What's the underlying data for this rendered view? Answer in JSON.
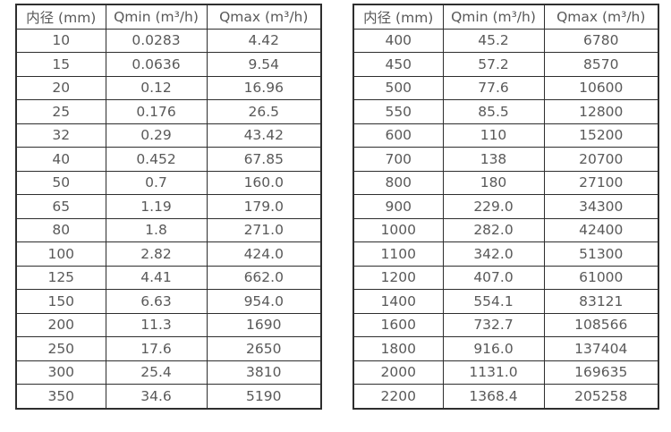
{
  "colors": {
    "background": "#ffffff",
    "border": "#2e2e2e",
    "text": "#595959"
  },
  "tables": [
    {
      "name": "flow-table-small-diameters",
      "headers": [
        "内径 (mm)",
        "Qmin (m³/h)",
        "Qmax (m³/h)"
      ],
      "rows": [
        [
          "10",
          "0.0283",
          "4.42"
        ],
        [
          "15",
          "0.0636",
          "9.54"
        ],
        [
          "20",
          "0.12",
          "16.96"
        ],
        [
          "25",
          "0.176",
          "26.5"
        ],
        [
          "32",
          "0.29",
          "43.42"
        ],
        [
          "40",
          "0.452",
          "67.85"
        ],
        [
          "50",
          "0.7",
          "160.0"
        ],
        [
          "65",
          "1.19",
          "179.0"
        ],
        [
          "80",
          "1.8",
          "271.0"
        ],
        [
          "100",
          "2.82",
          "424.0"
        ],
        [
          "125",
          "4.41",
          "662.0"
        ],
        [
          "150",
          "6.63",
          "954.0"
        ],
        [
          "200",
          "11.3",
          "1690"
        ],
        [
          "250",
          "17.6",
          "2650"
        ],
        [
          "300",
          "25.4",
          "3810"
        ],
        [
          "350",
          "34.6",
          "5190"
        ]
      ]
    },
    {
      "name": "flow-table-large-diameters",
      "headers": [
        "内径 (mm)",
        "Qmin (m³/h)",
        "Qmax (m³/h)"
      ],
      "rows": [
        [
          "400",
          "45.2",
          "6780"
        ],
        [
          "450",
          "57.2",
          "8570"
        ],
        [
          "500",
          "77.6",
          "10600"
        ],
        [
          "550",
          "85.5",
          "12800"
        ],
        [
          "600",
          "110",
          "15200"
        ],
        [
          "700",
          "138",
          "20700"
        ],
        [
          "800",
          "180",
          "27100"
        ],
        [
          "900",
          "229.0",
          "34300"
        ],
        [
          "1000",
          "282.0",
          "42400"
        ],
        [
          "1100",
          "342.0",
          "51300"
        ],
        [
          "1200",
          "407.0",
          "61000"
        ],
        [
          "1400",
          "554.1",
          "83121"
        ],
        [
          "1600",
          "732.7",
          "108566"
        ],
        [
          "1800",
          "916.0",
          "137404"
        ],
        [
          "2000",
          "1131.0",
          "169635"
        ],
        [
          "2200",
          "1368.4",
          "205258"
        ]
      ]
    }
  ],
  "chart_data": [
    {
      "type": "table",
      "title": "",
      "columns": [
        "内径 (mm)",
        "Qmin (m³/h)",
        "Qmax (m³/h)"
      ],
      "rows": [
        [
          10,
          0.0283,
          4.42
        ],
        [
          15,
          0.0636,
          9.54
        ],
        [
          20,
          0.12,
          16.96
        ],
        [
          25,
          0.176,
          26.5
        ],
        [
          32,
          0.29,
          43.42
        ],
        [
          40,
          0.452,
          67.85
        ],
        [
          50,
          0.7,
          160.0
        ],
        [
          65,
          1.19,
          179.0
        ],
        [
          80,
          1.8,
          271.0
        ],
        [
          100,
          2.82,
          424.0
        ],
        [
          125,
          4.41,
          662.0
        ],
        [
          150,
          6.63,
          954.0
        ],
        [
          200,
          11.3,
          1690
        ],
        [
          250,
          17.6,
          2650
        ],
        [
          300,
          25.4,
          3810
        ],
        [
          350,
          34.6,
          5190
        ]
      ]
    },
    {
      "type": "table",
      "title": "",
      "columns": [
        "内径 (mm)",
        "Qmin (m³/h)",
        "Qmax (m³/h)"
      ],
      "rows": [
        [
          400,
          45.2,
          6780
        ],
        [
          450,
          57.2,
          8570
        ],
        [
          500,
          77.6,
          10600
        ],
        [
          550,
          85.5,
          12800
        ],
        [
          600,
          110,
          15200
        ],
        [
          700,
          138,
          20700
        ],
        [
          800,
          180,
          27100
        ],
        [
          900,
          229.0,
          34300
        ],
        [
          1000,
          282.0,
          42400
        ],
        [
          1100,
          342.0,
          51300
        ],
        [
          1200,
          407.0,
          61000
        ],
        [
          1400,
          554.1,
          83121
        ],
        [
          1600,
          732.7,
          108566
        ],
        [
          1800,
          916.0,
          137404
        ],
        [
          2000,
          1131.0,
          169635
        ],
        [
          2200,
          1368.4,
          205258
        ]
      ]
    }
  ]
}
